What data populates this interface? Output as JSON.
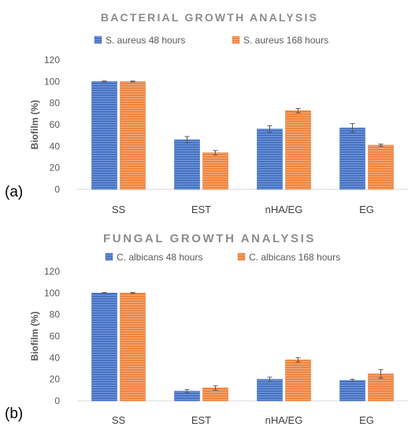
{
  "chart_data": [
    {
      "type": "bar",
      "panel_label": "(a)",
      "title": "BACTERIAL GROWTH ANALYSIS",
      "ylabel": "Biofilm (%)",
      "xlabel": "",
      "ylim": [
        0,
        120
      ],
      "yticks": [
        0,
        20,
        40,
        60,
        80,
        100,
        120
      ],
      "categories": [
        "SS",
        "EST",
        "nHA/EG",
        "EG"
      ],
      "legend_position": "top-center",
      "grid": false,
      "series": [
        {
          "name": "S. aureus 48 hours",
          "color": "#4472c4",
          "values": [
            100,
            46,
            56,
            57
          ],
          "errors": [
            0.5,
            3,
            3,
            4
          ]
        },
        {
          "name": "S. aureus 168 hours",
          "color": "#ed7d31",
          "values": [
            100,
            34,
            73,
            41
          ],
          "errors": [
            0.5,
            2,
            2,
            1
          ]
        }
      ]
    },
    {
      "type": "bar",
      "panel_label": "(b)",
      "title": "FUNGAL GROWTH ANALYSIS",
      "ylabel": "Biofilm (%)",
      "xlabel": "",
      "ylim": [
        0,
        120
      ],
      "yticks": [
        0,
        20,
        40,
        60,
        80,
        100,
        120
      ],
      "categories": [
        "SS",
        "EST",
        "nHA/EG",
        "EG"
      ],
      "legend_position": "top-center",
      "grid": false,
      "series": [
        {
          "name": "C. albicans 48 hours",
          "color": "#4472c4",
          "values": [
            100,
            9,
            20,
            19
          ],
          "errors": [
            0.5,
            1.5,
            2,
            1
          ]
        },
        {
          "name": "C. albicans 168 hours",
          "color": "#ed7d31",
          "values": [
            100,
            12,
            38,
            25
          ],
          "errors": [
            0.5,
            2,
            2,
            4
          ]
        }
      ]
    }
  ]
}
